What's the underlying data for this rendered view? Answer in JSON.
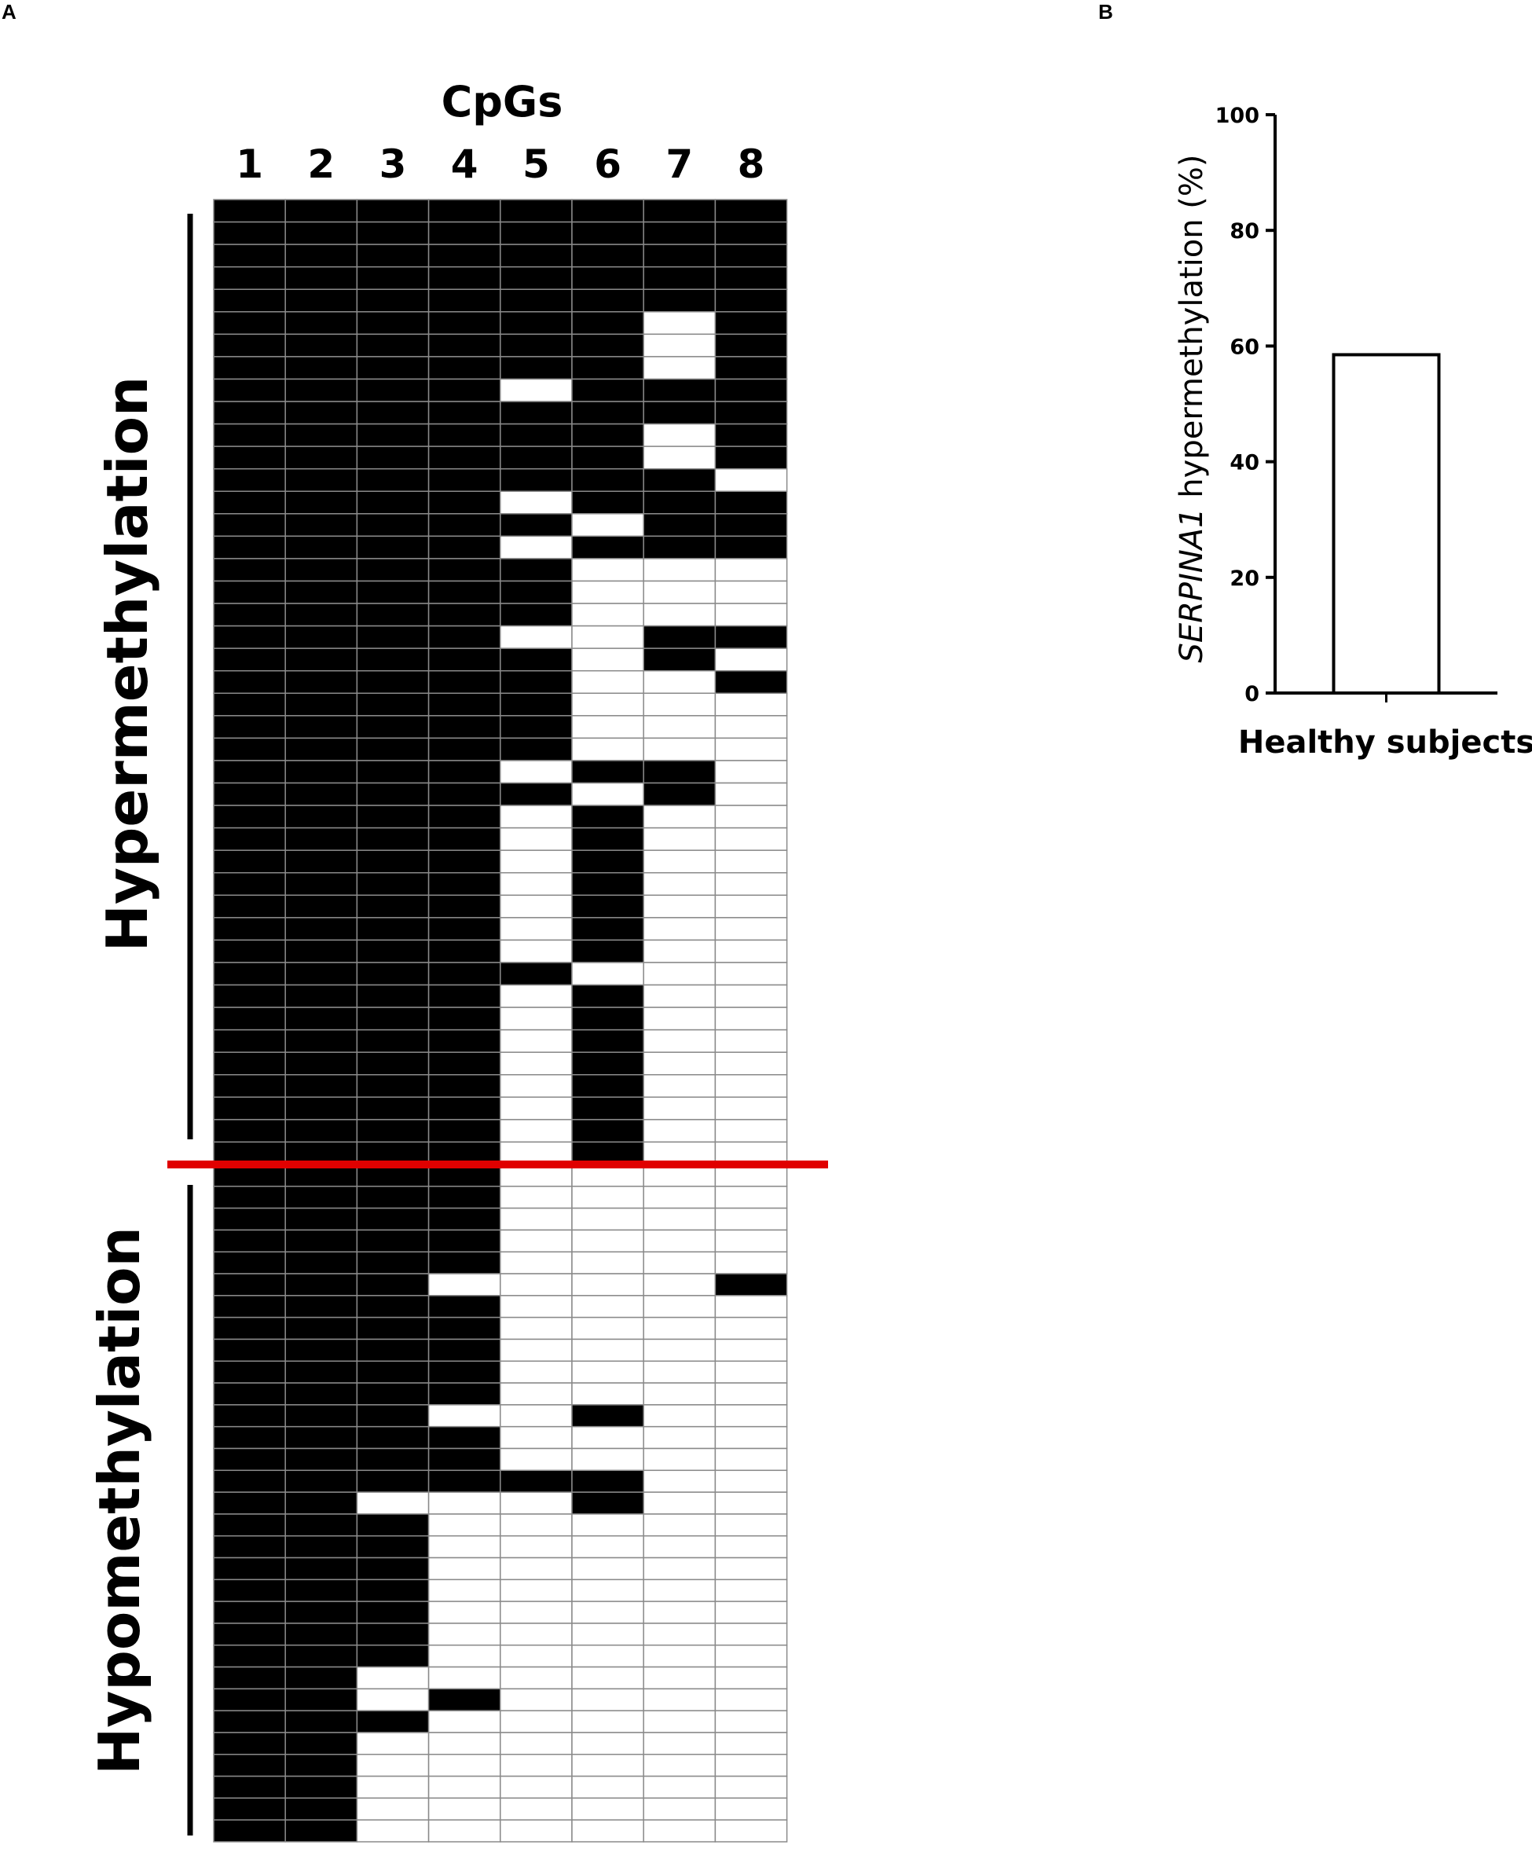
{
  "panel_labels": {
    "a": "A",
    "b": "B"
  },
  "colors": {
    "methylated": "#000000",
    "unmethylated": "#ffffff",
    "grid": "#8a8a8a",
    "divider": "#e00000",
    "bar_fill": "#ffffff",
    "bar_stroke": "#000000"
  },
  "chart_data": [
    {
      "type": "heatmap",
      "title": "CpGs",
      "x_tick_labels": [
        "1",
        "2",
        "3",
        "4",
        "5",
        "6",
        "7",
        "8"
      ],
      "group_labels": [
        "Hypermethylation",
        "Hypomethylation"
      ],
      "legend": "none",
      "value_encoding": "1 = methylated (black), 0 = unmethylated (white)",
      "hypermethylation_rows": [
        "11111111",
        "11111111",
        "11111111",
        "11111111",
        "11111111",
        "11111101",
        "11111101",
        "11111101",
        "11110111",
        "11111111",
        "11111101",
        "11111101",
        "11111110",
        "11110111",
        "11111011",
        "11110111",
        "11111000",
        "11111000",
        "11111000",
        "11110011",
        "11111010",
        "11111001",
        "11111000",
        "11111000",
        "11111000",
        "11110110",
        "11111010",
        "11110100",
        "11110100",
        "11110100",
        "11110100",
        "11110100",
        "11110100",
        "11110100",
        "11111000",
        "11110100",
        "11110100",
        "11110100",
        "11110100",
        "11110100",
        "11110100",
        "11110100",
        "11110100"
      ],
      "hypomethylation_rows": [
        "11110000",
        "11110000",
        "11110000",
        "11110000",
        "11110000",
        "11100001",
        "11110000",
        "11110000",
        "11110000",
        "11110000",
        "11110000",
        "11100100",
        "11110000",
        "11110000",
        "11111100",
        "11000100",
        "11100000",
        "11100000",
        "11100000",
        "11100000",
        "11100000",
        "11100000",
        "11100000",
        "11000000",
        "11010000",
        "11100000",
        "11000000",
        "11000000",
        "11000000",
        "11000000",
        "11000000"
      ]
    },
    {
      "type": "bar",
      "categories": [
        "Healthy subjects"
      ],
      "values": [
        58.5
      ],
      "ylabel_italic_part": "SERPINA1",
      "ylabel_rest": " hypermethylation (%)",
      "ylim": [
        0,
        100
      ],
      "yticks": [
        0,
        20,
        40,
        60,
        80,
        100
      ],
      "grid": false,
      "legend": "none"
    }
  ]
}
